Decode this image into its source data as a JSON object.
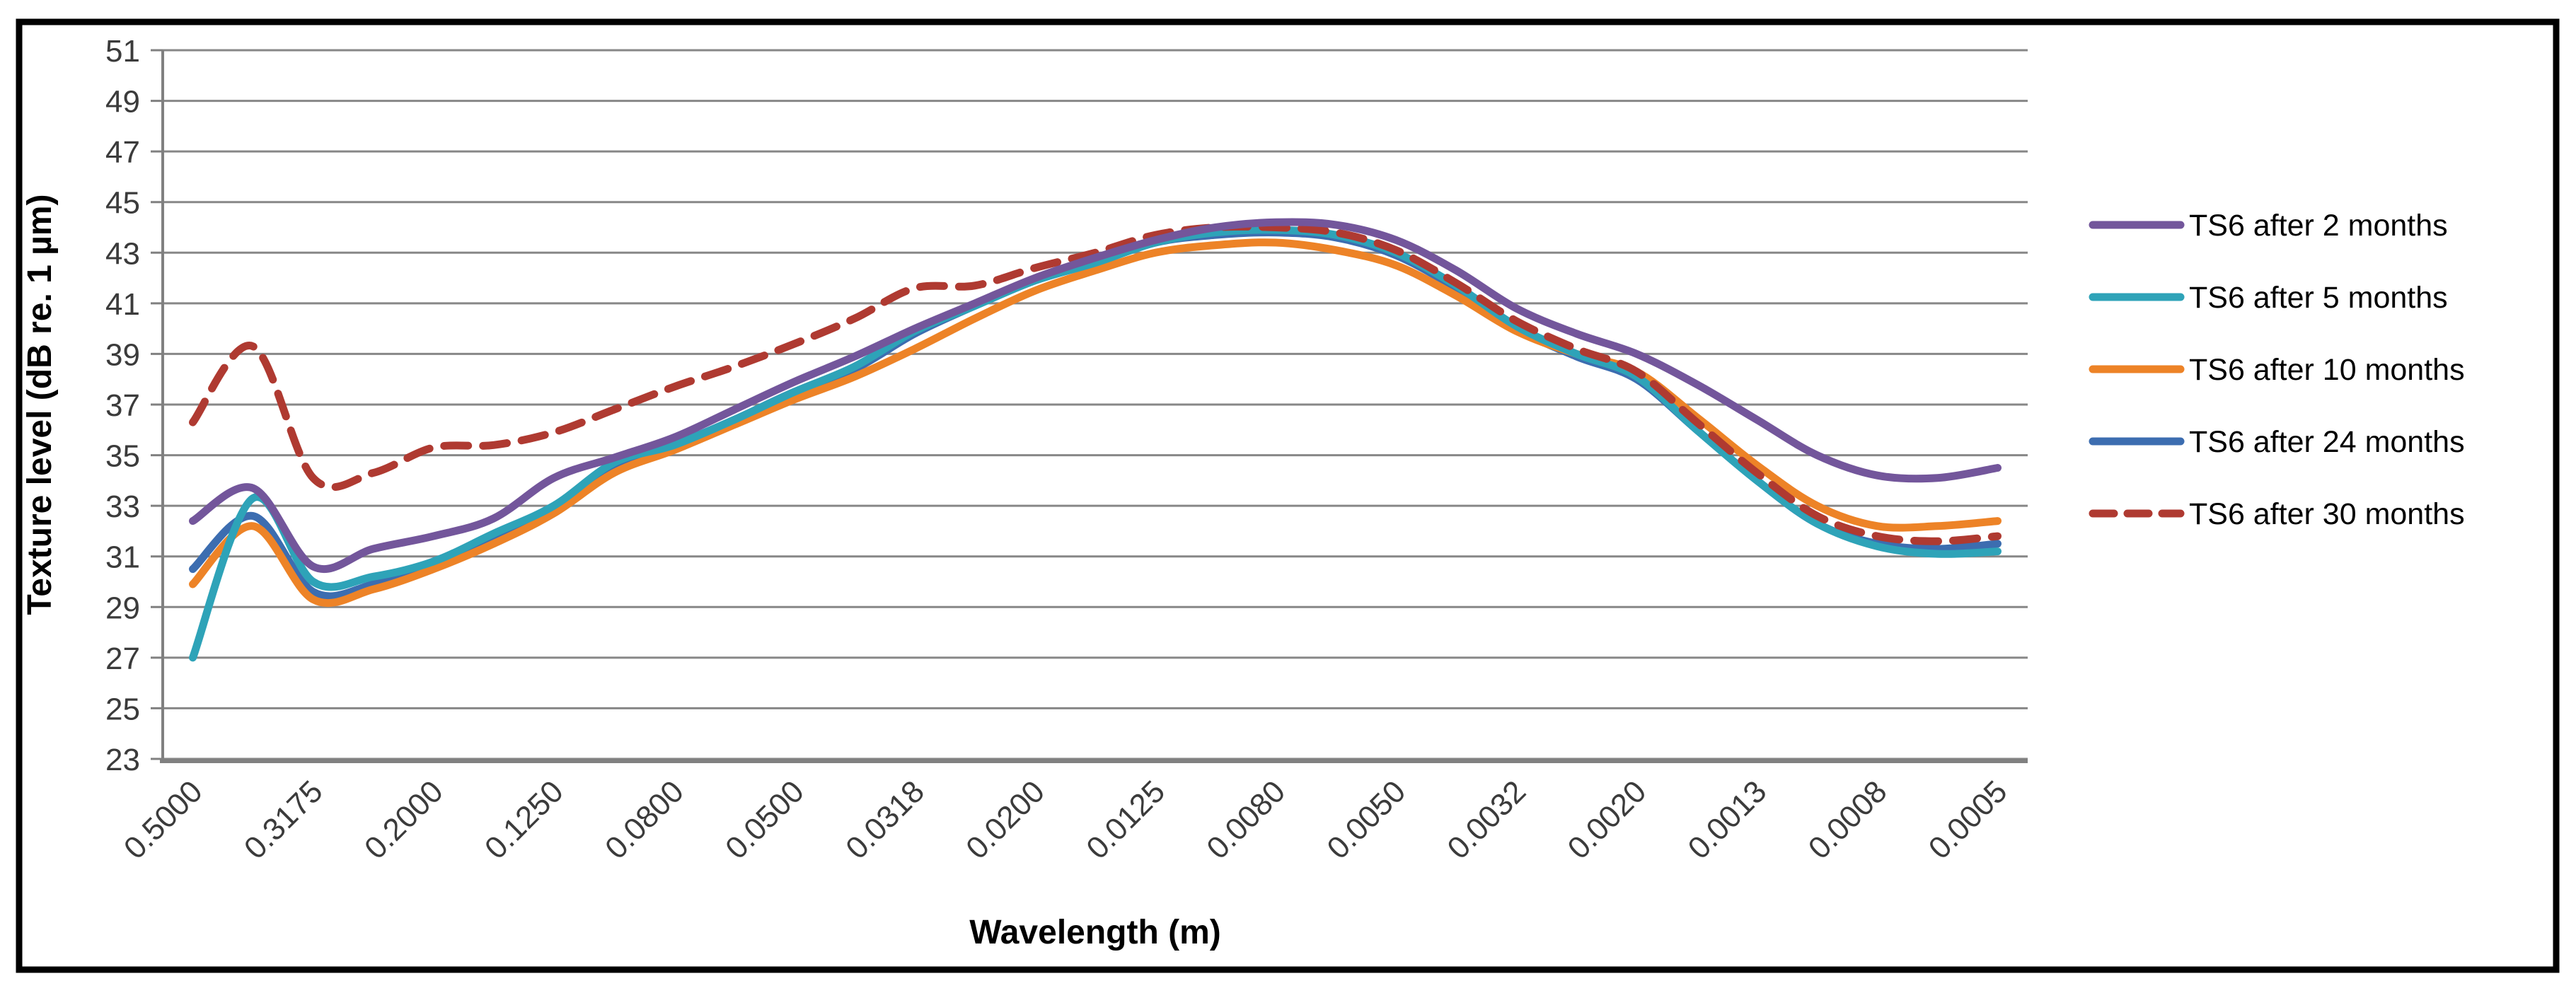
{
  "figure": {
    "background": "#ffffff",
    "outer_border_color": "#000000",
    "outer_border_width": 9
  },
  "chart_data": {
    "type": "line",
    "title": "",
    "xlabel": "Wavelength (m)",
    "ylabel": "Texture level (dB re. 1 µm)",
    "ylim": [
      23,
      51
    ],
    "ytick_step": 2,
    "yticks": [
      23,
      25,
      27,
      29,
      31,
      33,
      35,
      37,
      39,
      41,
      43,
      45,
      47,
      49,
      51
    ],
    "grid": true,
    "gridline_color": "#878787",
    "axis_color": "#808080",
    "tick_label_color": "#3b3b3b",
    "axis_title_color": "#000000",
    "legend_position": "right",
    "n_points": 31,
    "label_every": 2,
    "x_labels_visible": [
      "0.5000",
      "0.3175",
      "0.2000",
      "0.1250",
      "0.0800",
      "0.0500",
      "0.0318",
      "0.0200",
      "0.0125",
      "0.0080",
      "0.0050",
      "0.0032",
      "0.0020",
      "0.0013",
      "0.0008",
      "0.0005"
    ],
    "series": [
      {
        "name": "TS6 after 2 months",
        "color": "#73569B",
        "dash": false,
        "values": [
          32.4,
          33.7,
          30.6,
          31.3,
          31.8,
          32.5,
          34.1,
          34.9,
          35.7,
          36.8,
          37.9,
          38.9,
          40.0,
          41.0,
          42.0,
          42.8,
          43.5,
          44.0,
          44.2,
          44.1,
          43.5,
          42.3,
          40.8,
          39.8,
          39.0,
          37.8,
          36.4,
          35.0,
          34.2,
          34.1,
          34.5
        ]
      },
      {
        "name": "TS6 after 5 months",
        "color": "#2EA3B8",
        "dash": false,
        "values": [
          27.0,
          33.3,
          30.0,
          30.2,
          30.8,
          31.9,
          33.0,
          34.7,
          35.4,
          36.4,
          37.5,
          38.5,
          39.9,
          40.9,
          41.9,
          42.6,
          43.4,
          43.8,
          43.9,
          43.7,
          43.0,
          41.7,
          40.1,
          39.0,
          38.1,
          36.0,
          34.0,
          32.3,
          31.4,
          31.1,
          31.2
        ]
      },
      {
        "name": "TS6 after 10 months",
        "color": "#ED8327",
        "dash": false,
        "values": [
          29.9,
          32.2,
          29.3,
          29.7,
          30.5,
          31.5,
          32.7,
          34.3,
          35.2,
          36.2,
          37.2,
          38.1,
          39.2,
          40.4,
          41.5,
          42.3,
          43.0,
          43.3,
          43.4,
          43.1,
          42.5,
          41.3,
          39.9,
          39.0,
          38.3,
          36.5,
          34.6,
          33.0,
          32.2,
          32.2,
          32.4
        ]
      },
      {
        "name": "TS6 after 24 months",
        "color": "#3C6DB0",
        "dash": false,
        "values": [
          30.5,
          32.6,
          29.6,
          29.9,
          30.8,
          31.7,
          32.9,
          34.5,
          35.4,
          36.4,
          37.5,
          38.4,
          39.8,
          40.9,
          41.9,
          42.6,
          43.4,
          43.7,
          43.8,
          43.6,
          42.9,
          41.6,
          40.0,
          38.9,
          38.0,
          36.0,
          34.0,
          32.3,
          31.5,
          31.3,
          31.5
        ]
      },
      {
        "name": "TS6 after 30 months",
        "color": "#AF3A31",
        "dash": true,
        "values": [
          36.3,
          39.3,
          34.1,
          34.3,
          35.3,
          35.4,
          35.9,
          36.8,
          37.7,
          38.5,
          39.4,
          40.4,
          41.6,
          41.7,
          42.4,
          43.0,
          43.7,
          44.0,
          44.0,
          43.8,
          43.1,
          41.8,
          40.3,
          39.2,
          38.3,
          36.3,
          34.3,
          32.6,
          31.8,
          31.6,
          31.8
        ]
      }
    ],
    "draw_order": [
      3,
      2,
      1,
      4,
      0
    ]
  }
}
